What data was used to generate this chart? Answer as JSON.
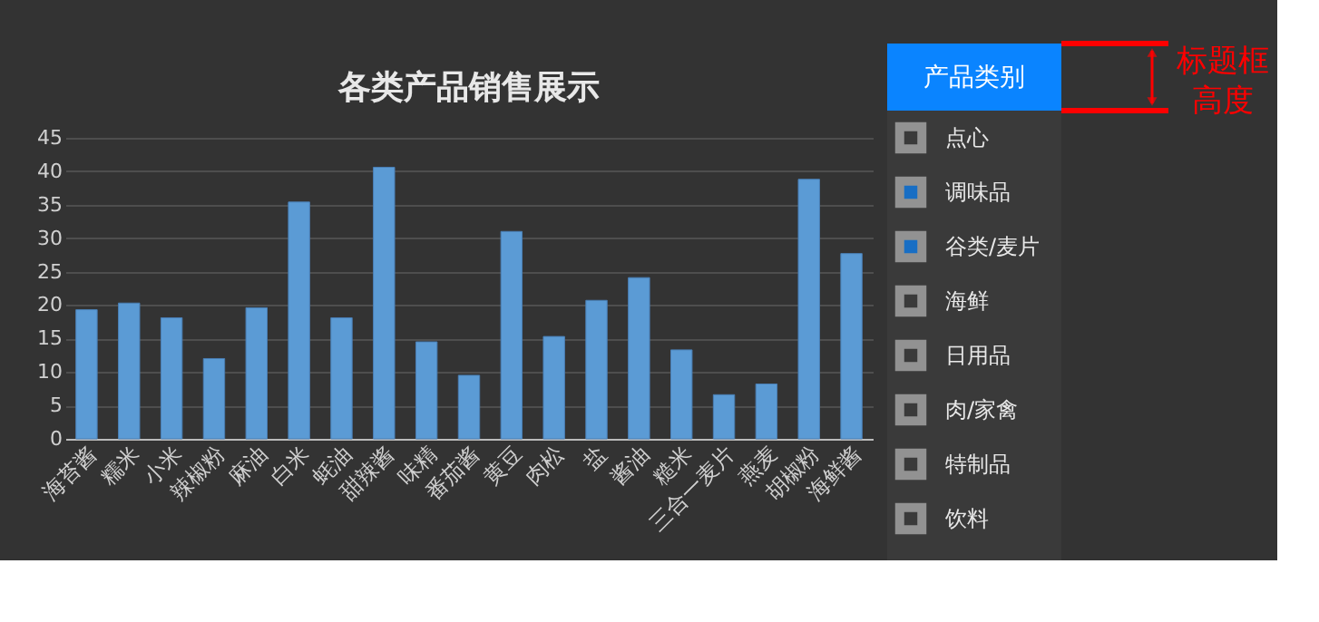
{
  "chart_data": [
    {
      "type": "bar",
      "title": "各类产品销售展示",
      "categories": [
        "海苔酱",
        "糯米",
        "小米",
        "辣椒粉",
        "麻油",
        "白米",
        "蚝油",
        "甜辣酱",
        "味精",
        "番茄酱",
        "黄豆",
        "肉松",
        "盐",
        "酱油",
        "糙米",
        "三合一麦片",
        "燕麦",
        "胡椒粉",
        "海鲜酱"
      ],
      "values": [
        19.3,
        20.3,
        18.1,
        12.0,
        19.6,
        35.4,
        18.1,
        40.6,
        14.5,
        9.5,
        31.0,
        15.3,
        20.7,
        24.1,
        13.3,
        6.6,
        8.2,
        38.8,
        27.7
      ],
      "color": "#5b9bd5",
      "ylim": [
        0,
        45
      ],
      "yticks": [
        0,
        5,
        10,
        15,
        20,
        25,
        30,
        35,
        40,
        45
      ],
      "grid": "y"
    },
    {
      "type": "other",
      "title": "产品类别",
      "categories": [
        "点心",
        "调味品",
        "谷类/麦片",
        "海鲜",
        "日用品",
        "肉/家禽",
        "特制品",
        "饮料"
      ],
      "colors": [
        "#3a3a3a",
        "#0a84ff",
        "#0a84ff",
        "#3a3a3a",
        "#3a3a3a",
        "#3a3a3a",
        "#3a3a3a",
        "#3a3a3a"
      ],
      "annotations": [
        "标题框高度"
      ]
    }
  ]
}
